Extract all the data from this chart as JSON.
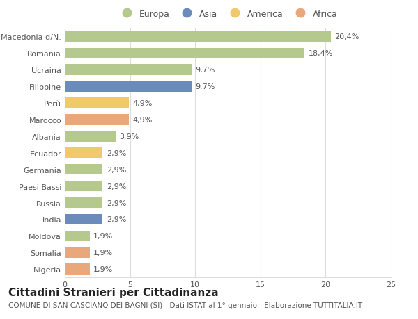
{
  "categories": [
    "Macedonia d/N.",
    "Romania",
    "Ucraina",
    "Filippine",
    "Perù",
    "Marocco",
    "Albania",
    "Ecuador",
    "Germania",
    "Paesi Bassi",
    "Russia",
    "India",
    "Moldova",
    "Somalia",
    "Nigeria"
  ],
  "values": [
    20.4,
    18.4,
    9.7,
    9.7,
    4.9,
    4.9,
    3.9,
    2.9,
    2.9,
    2.9,
    2.9,
    2.9,
    1.9,
    1.9,
    1.9
  ],
  "labels": [
    "20,4%",
    "18,4%",
    "9,7%",
    "9,7%",
    "4,9%",
    "4,9%",
    "3,9%",
    "2,9%",
    "2,9%",
    "2,9%",
    "2,9%",
    "2,9%",
    "1,9%",
    "1,9%",
    "1,9%"
  ],
  "continents": [
    "Europa",
    "Europa",
    "Europa",
    "Asia",
    "America",
    "Africa",
    "Europa",
    "America",
    "Europa",
    "Europa",
    "Europa",
    "Asia",
    "Europa",
    "Africa",
    "Africa"
  ],
  "continent_colors": {
    "Europa": "#b5c98e",
    "Asia": "#6b8cba",
    "America": "#f0c96b",
    "Africa": "#e8a87c"
  },
  "legend_order": [
    "Europa",
    "Asia",
    "America",
    "Africa"
  ],
  "title": "Cittadini Stranieri per Cittadinanza",
  "subtitle": "COMUNE DI SAN CASCIANO DEI BAGNI (SI) - Dati ISTAT al 1° gennaio - Elaborazione TUTTITALIA.IT",
  "xlim": [
    0,
    25
  ],
  "xticks": [
    0,
    5,
    10,
    15,
    20,
    25
  ],
  "background_color": "#ffffff",
  "bar_height": 0.65,
  "grid_color": "#dddddd",
  "title_fontsize": 11,
  "subtitle_fontsize": 7.5,
  "label_fontsize": 8,
  "tick_fontsize": 8,
  "legend_fontsize": 9,
  "text_color": "#555555"
}
